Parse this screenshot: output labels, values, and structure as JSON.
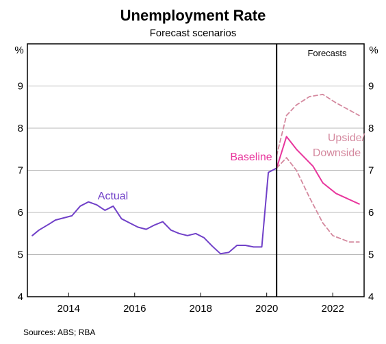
{
  "chart_data": {
    "type": "line",
    "title": "Unemployment Rate",
    "subtitle": "Forecast scenarios",
    "ylabel": "%",
    "ylim": [
      4,
      10
    ],
    "yticks": [
      4,
      5,
      6,
      7,
      8,
      9
    ],
    "xlim": [
      2012.75,
      2022.95
    ],
    "xticks": [
      2014,
      2016,
      2018,
      2020,
      2022
    ],
    "grid": true,
    "forecast_start": 2020.3,
    "forecast_label": "Forecasts",
    "source": "Sources: ABS; RBA",
    "colors": {
      "actual": "#7040c8",
      "baseline": "#e8359c",
      "scenario": "#d4889e"
    },
    "series": [
      {
        "name": "Actual",
        "style": "solid",
        "points": [
          [
            2012.9,
            5.45
          ],
          [
            2013.1,
            5.58
          ],
          [
            2013.4,
            5.72
          ],
          [
            2013.6,
            5.82
          ],
          [
            2013.9,
            5.88
          ],
          [
            2014.1,
            5.92
          ],
          [
            2014.35,
            6.15
          ],
          [
            2014.6,
            6.25
          ],
          [
            2014.85,
            6.18
          ],
          [
            2015.1,
            6.05
          ],
          [
            2015.35,
            6.15
          ],
          [
            2015.6,
            5.85
          ],
          [
            2015.85,
            5.75
          ],
          [
            2016.1,
            5.65
          ],
          [
            2016.35,
            5.6
          ],
          [
            2016.6,
            5.7
          ],
          [
            2016.85,
            5.78
          ],
          [
            2017.1,
            5.58
          ],
          [
            2017.35,
            5.5
          ],
          [
            2017.6,
            5.45
          ],
          [
            2017.85,
            5.5
          ],
          [
            2018.1,
            5.4
          ],
          [
            2018.35,
            5.2
          ],
          [
            2018.6,
            5.02
          ],
          [
            2018.85,
            5.05
          ],
          [
            2019.1,
            5.22
          ],
          [
            2019.35,
            5.22
          ],
          [
            2019.6,
            5.18
          ],
          [
            2019.85,
            5.18
          ],
          [
            2020.05,
            6.95
          ],
          [
            2020.3,
            7.05
          ]
        ]
      },
      {
        "name": "Baseline",
        "style": "solid",
        "points": [
          [
            2020.3,
            7.05
          ],
          [
            2020.6,
            7.8
          ],
          [
            2020.9,
            7.5
          ],
          [
            2021.4,
            7.1
          ],
          [
            2021.7,
            6.7
          ],
          [
            2022.1,
            6.45
          ],
          [
            2022.8,
            6.2
          ]
        ]
      },
      {
        "name": "Upside/Downside",
        "style": "dashed",
        "points": [
          [
            2020.3,
            7.35
          ],
          [
            2020.6,
            8.3
          ],
          [
            2020.9,
            8.55
          ],
          [
            2021.3,
            8.75
          ],
          [
            2021.7,
            8.8
          ],
          [
            2022.1,
            8.6
          ],
          [
            2022.8,
            8.3
          ]
        ]
      },
      {
        "name": "Upside/Downside",
        "style": "dashed",
        "points": [
          [
            2020.3,
            7.05
          ],
          [
            2020.6,
            7.3
          ],
          [
            2020.9,
            7.0
          ],
          [
            2021.3,
            6.35
          ],
          [
            2021.7,
            5.75
          ],
          [
            2022.0,
            5.45
          ],
          [
            2022.5,
            5.3
          ],
          [
            2022.8,
            5.3
          ]
        ]
      }
    ]
  },
  "labels": {
    "actual": "Actual",
    "baseline": "Baseline",
    "upside_1": "Upside/",
    "upside_2": "Downside"
  }
}
